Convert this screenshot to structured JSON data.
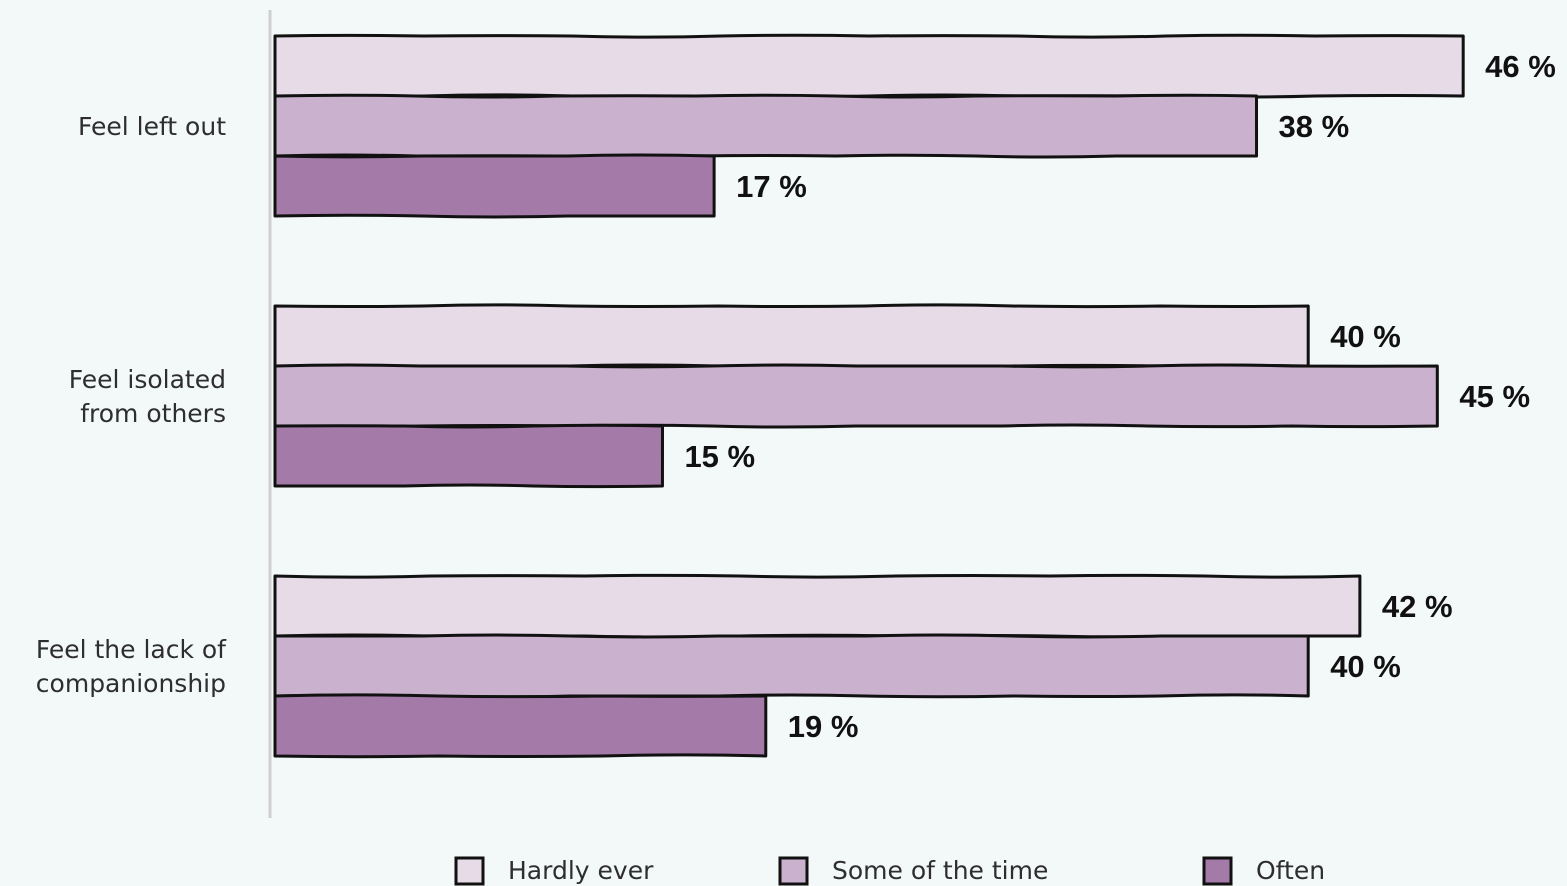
{
  "chart_data": {
    "type": "bar",
    "orientation": "horizontal",
    "title": "",
    "xlabel": "",
    "ylabel": "",
    "xlim": [
      0,
      48
    ],
    "grid": false,
    "legend_position": "bottom",
    "value_suffix": " %",
    "categories": [
      [
        "Feel left out"
      ],
      [
        "Feel isolated",
        "from others"
      ],
      [
        "Feel the lack of",
        "companionship"
      ]
    ],
    "series": [
      {
        "name": "Hardly ever",
        "color": "#e6dbe7",
        "values": [
          46,
          40,
          42
        ]
      },
      {
        "name": "Some of the time",
        "color": "#cab1cd",
        "values": [
          38,
          45,
          40
        ]
      },
      {
        "name": "Often",
        "color": "#a47ba8",
        "values": [
          17,
          15,
          19
        ]
      }
    ]
  }
}
